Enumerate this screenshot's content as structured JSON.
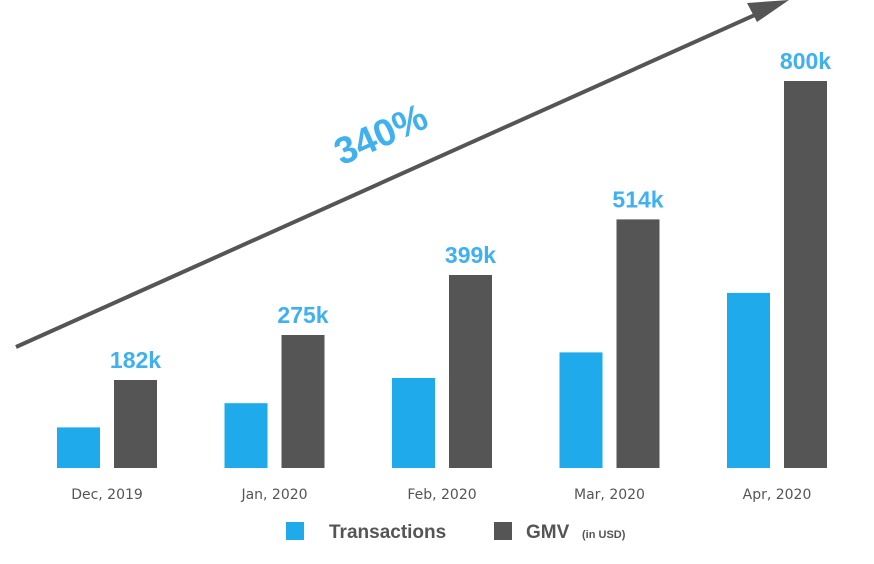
{
  "chart_data": {
    "type": "bar",
    "categories": [
      "Dec, 2019",
      "Jan, 2020",
      "Feb, 2020",
      "Mar, 2020",
      "Apr, 2020"
    ],
    "series": [
      {
        "name": "Transactions",
        "values": [
          84,
          134,
          186,
          239,
          362
        ],
        "color": "#1eaaeb"
      },
      {
        "name": "GMV",
        "values": [
          182,
          275,
          399,
          514,
          800
        ],
        "color": "#555555"
      }
    ],
    "data_labels": [
      "182k",
      "275k",
      "399k",
      "514k",
      "800k"
    ],
    "annotation": "340%",
    "ylim": [
      0,
      820
    ],
    "grid": false,
    "legend_position": "bottom"
  },
  "legend": {
    "transactions_label": "Transactions",
    "gmv_label": "GMV",
    "gmv_note": "(in USD)"
  },
  "colors": {
    "accent": "#3fb0f0",
    "transactions": "#1eaaeb",
    "gmv": "#555555",
    "arrow": "#555555",
    "axis_text": "#555555"
  }
}
